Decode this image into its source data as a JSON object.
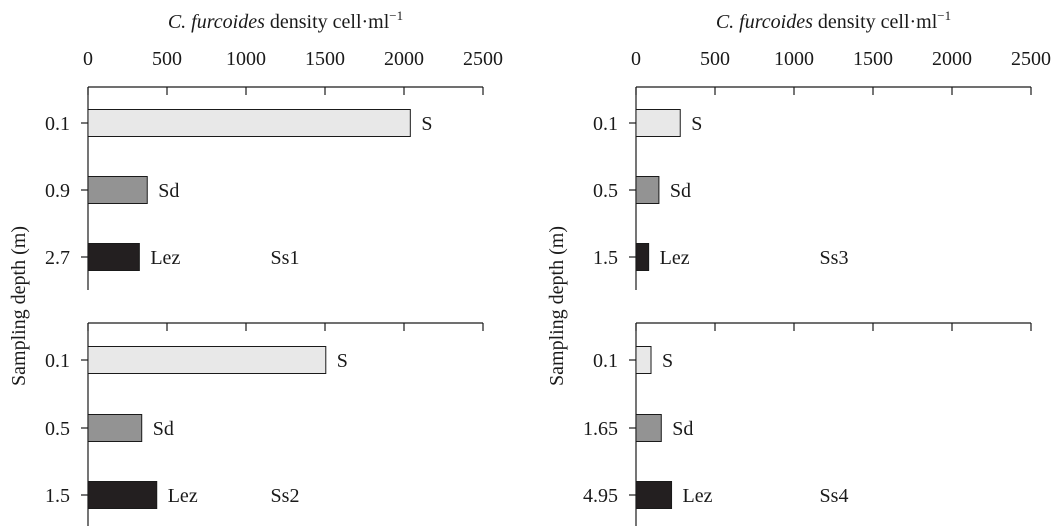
{
  "chart_data": {
    "type": "bar",
    "orientation": "horizontal",
    "x_axis": {
      "title_italic": "C. furcoides",
      "title_rest": " density cell·ml",
      "title_superscript": "−1",
      "ticks": [
        "0",
        "500",
        "1000",
        "1500",
        "2000",
        "2500"
      ],
      "xlim": [
        0,
        2500
      ]
    },
    "y_axis_label": "Sampling depth (m)",
    "series_colors": {
      "S": "#e8e8e8",
      "Sd": "#939393",
      "Lez": "#231f20"
    },
    "panels": [
      {
        "label": "Ss1",
        "bars": [
          {
            "depth": "0.1",
            "layer": "S",
            "value": 2040
          },
          {
            "depth": "0.9",
            "layer": "Sd",
            "value": 375
          },
          {
            "depth": "2.7",
            "layer": "Lez",
            "value": 325
          }
        ]
      },
      {
        "label": "Ss2",
        "bars": [
          {
            "depth": "0.1",
            "layer": "S",
            "value": 1505
          },
          {
            "depth": "0.5",
            "layer": "Sd",
            "value": 340
          },
          {
            "depth": "1.5",
            "layer": "Lez",
            "value": 435
          }
        ]
      },
      {
        "label": "Ss3",
        "bars": [
          {
            "depth": "0.1",
            "layer": "S",
            "value": 280
          },
          {
            "depth": "0.5",
            "layer": "Sd",
            "value": 145
          },
          {
            "depth": "1.5",
            "layer": "Lez",
            "value": 80
          }
        ]
      },
      {
        "label": "Ss4",
        "bars": [
          {
            "depth": "0.1",
            "layer": "S",
            "value": 95
          },
          {
            "depth": "1.65",
            "layer": "Sd",
            "value": 160
          },
          {
            "depth": "4.95",
            "layer": "Lez",
            "value": 225
          }
        ]
      }
    ]
  }
}
